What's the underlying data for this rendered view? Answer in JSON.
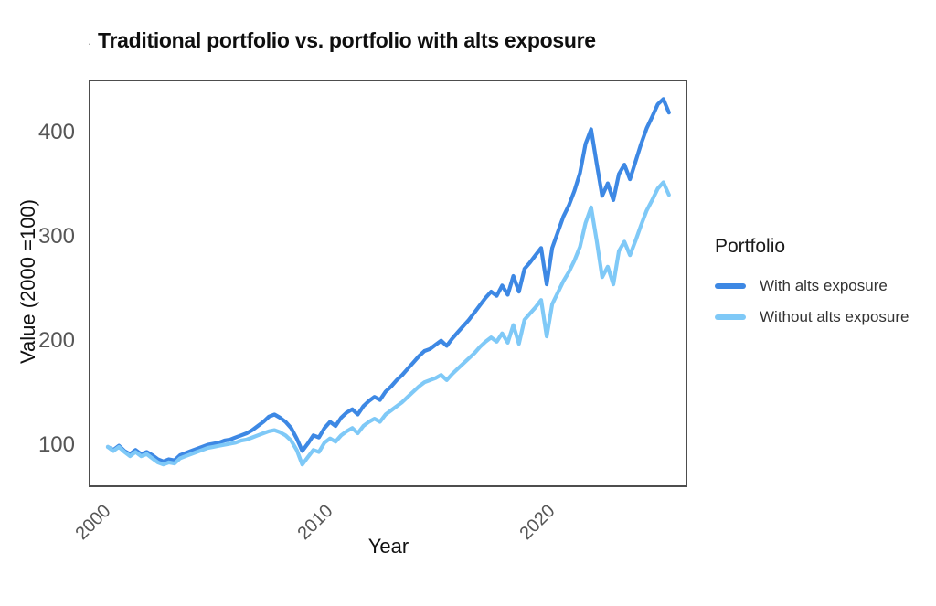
{
  "title": {
    "dot": ".",
    "text": "Traditional portfolio vs. portfolio with alts exposure"
  },
  "chart_data": {
    "type": "line",
    "title": "Traditional portfolio vs. portfolio with alts exposure",
    "xlabel": "Year",
    "ylabel": "Value (2000 =100)",
    "x_domain": [
      1999.47,
      2026.25
    ],
    "y_domain": [
      63,
      451
    ],
    "xticks": [
      2000,
      2010,
      2020
    ],
    "yticks": [
      100,
      200,
      300,
      400
    ],
    "grid": false,
    "panel_border_color": "#4d4d4d",
    "tick_label_color": "#565656",
    "legend": {
      "position": "right",
      "title": "Portfolio"
    },
    "series": [
      {
        "name": "With alts exposure",
        "color": "#3d88e4",
        "points": [
          [
            2000.25,
            100
          ],
          [
            2000.5,
            97
          ],
          [
            2000.75,
            101
          ],
          [
            2001,
            96
          ],
          [
            2001.25,
            93
          ],
          [
            2001.5,
            97
          ],
          [
            2001.75,
            93
          ],
          [
            2002,
            95
          ],
          [
            2002.25,
            92
          ],
          [
            2002.5,
            88
          ],
          [
            2002.75,
            86
          ],
          [
            2003,
            88
          ],
          [
            2003.25,
            87
          ],
          [
            2003.5,
            92
          ],
          [
            2003.75,
            94
          ],
          [
            2004,
            96
          ],
          [
            2004.25,
            98
          ],
          [
            2004.5,
            100
          ],
          [
            2004.75,
            102
          ],
          [
            2005,
            103
          ],
          [
            2005.25,
            104
          ],
          [
            2005.5,
            106
          ],
          [
            2005.75,
            107
          ],
          [
            2006,
            109
          ],
          [
            2006.25,
            111
          ],
          [
            2006.5,
            113
          ],
          [
            2006.75,
            116
          ],
          [
            2007,
            120
          ],
          [
            2007.25,
            124
          ],
          [
            2007.5,
            129
          ],
          [
            2007.75,
            131
          ],
          [
            2008,
            128
          ],
          [
            2008.25,
            124
          ],
          [
            2008.5,
            118
          ],
          [
            2008.75,
            108
          ],
          [
            2009,
            96
          ],
          [
            2009.25,
            103
          ],
          [
            2009.5,
            111
          ],
          [
            2009.75,
            109
          ],
          [
            2010,
            118
          ],
          [
            2010.25,
            124
          ],
          [
            2010.5,
            120
          ],
          [
            2010.75,
            128
          ],
          [
            2011,
            133
          ],
          [
            2011.25,
            136
          ],
          [
            2011.5,
            131
          ],
          [
            2011.75,
            139
          ],
          [
            2012,
            144
          ],
          [
            2012.25,
            148
          ],
          [
            2012.5,
            145
          ],
          [
            2012.75,
            153
          ],
          [
            2013,
            158
          ],
          [
            2013.25,
            164
          ],
          [
            2013.5,
            169
          ],
          [
            2013.75,
            175
          ],
          [
            2014,
            181
          ],
          [
            2014.25,
            187
          ],
          [
            2014.5,
            192
          ],
          [
            2014.75,
            194
          ],
          [
            2015,
            198
          ],
          [
            2015.25,
            202
          ],
          [
            2015.5,
            197
          ],
          [
            2015.75,
            204
          ],
          [
            2016,
            210
          ],
          [
            2016.25,
            216
          ],
          [
            2016.5,
            222
          ],
          [
            2016.75,
            229
          ],
          [
            2017,
            236
          ],
          [
            2017.25,
            243
          ],
          [
            2017.5,
            249
          ],
          [
            2017.75,
            245
          ],
          [
            2018,
            255
          ],
          [
            2018.25,
            246
          ],
          [
            2018.5,
            264
          ],
          [
            2018.75,
            249
          ],
          [
            2019,
            271
          ],
          [
            2019.25,
            277
          ],
          [
            2019.5,
            284
          ],
          [
            2019.75,
            291
          ],
          [
            2020,
            256
          ],
          [
            2020.25,
            291
          ],
          [
            2020.5,
            306
          ],
          [
            2020.75,
            321
          ],
          [
            2021,
            332
          ],
          [
            2021.25,
            346
          ],
          [
            2021.5,
            363
          ],
          [
            2021.75,
            391
          ],
          [
            2022,
            405
          ],
          [
            2022.25,
            372
          ],
          [
            2022.5,
            341
          ],
          [
            2022.75,
            353
          ],
          [
            2023,
            337
          ],
          [
            2023.25,
            362
          ],
          [
            2023.5,
            371
          ],
          [
            2023.75,
            357
          ],
          [
            2024,
            374
          ],
          [
            2024.25,
            391
          ],
          [
            2024.5,
            406
          ],
          [
            2024.75,
            417
          ],
          [
            2025,
            429
          ],
          [
            2025.25,
            434
          ],
          [
            2025.5,
            421
          ]
        ]
      },
      {
        "name": "Without alts exposure",
        "color": "#7fc9f7",
        "points": [
          [
            2000.25,
            100
          ],
          [
            2000.5,
            96
          ],
          [
            2000.75,
            100
          ],
          [
            2001,
            95
          ],
          [
            2001.25,
            91
          ],
          [
            2001.5,
            95
          ],
          [
            2001.75,
            91
          ],
          [
            2002,
            93
          ],
          [
            2002.25,
            89
          ],
          [
            2002.5,
            85
          ],
          [
            2002.75,
            83
          ],
          [
            2003,
            85
          ],
          [
            2003.25,
            84
          ],
          [
            2003.5,
            89
          ],
          [
            2003.75,
            91
          ],
          [
            2004,
            93
          ],
          [
            2004.25,
            95
          ],
          [
            2004.5,
            97
          ],
          [
            2004.75,
            99
          ],
          [
            2005,
            100
          ],
          [
            2005.25,
            101
          ],
          [
            2005.5,
            102
          ],
          [
            2005.75,
            103
          ],
          [
            2006,
            104
          ],
          [
            2006.25,
            106
          ],
          [
            2006.5,
            107
          ],
          [
            2006.75,
            109
          ],
          [
            2007,
            111
          ],
          [
            2007.25,
            113
          ],
          [
            2007.5,
            115
          ],
          [
            2007.75,
            116
          ],
          [
            2008,
            114
          ],
          [
            2008.25,
            111
          ],
          [
            2008.5,
            106
          ],
          [
            2008.75,
            97
          ],
          [
            2009,
            83
          ],
          [
            2009.25,
            90
          ],
          [
            2009.5,
            97
          ],
          [
            2009.75,
            95
          ],
          [
            2010,
            104
          ],
          [
            2010.25,
            108
          ],
          [
            2010.5,
            105
          ],
          [
            2010.75,
            111
          ],
          [
            2011,
            115
          ],
          [
            2011.25,
            118
          ],
          [
            2011.5,
            113
          ],
          [
            2011.75,
            120
          ],
          [
            2012,
            124
          ],
          [
            2012.25,
            127
          ],
          [
            2012.5,
            124
          ],
          [
            2012.75,
            131
          ],
          [
            2013,
            135
          ],
          [
            2013.25,
            139
          ],
          [
            2013.5,
            143
          ],
          [
            2013.75,
            148
          ],
          [
            2014,
            153
          ],
          [
            2014.25,
            158
          ],
          [
            2014.5,
            162
          ],
          [
            2014.75,
            164
          ],
          [
            2015,
            166
          ],
          [
            2015.25,
            169
          ],
          [
            2015.5,
            164
          ],
          [
            2015.75,
            170
          ],
          [
            2016,
            175
          ],
          [
            2016.25,
            180
          ],
          [
            2016.5,
            185
          ],
          [
            2016.75,
            190
          ],
          [
            2017,
            196
          ],
          [
            2017.25,
            201
          ],
          [
            2017.5,
            205
          ],
          [
            2017.75,
            201
          ],
          [
            2018,
            209
          ],
          [
            2018.25,
            200
          ],
          [
            2018.5,
            217
          ],
          [
            2018.75,
            199
          ],
          [
            2019,
            222
          ],
          [
            2019.25,
            228
          ],
          [
            2019.5,
            234
          ],
          [
            2019.75,
            241
          ],
          [
            2020,
            206
          ],
          [
            2020.25,
            237
          ],
          [
            2020.5,
            248
          ],
          [
            2020.75,
            259
          ],
          [
            2021,
            268
          ],
          [
            2021.25,
            279
          ],
          [
            2021.5,
            292
          ],
          [
            2021.75,
            315
          ],
          [
            2022,
            330
          ],
          [
            2022.25,
            298
          ],
          [
            2022.5,
            263
          ],
          [
            2022.75,
            273
          ],
          [
            2023,
            256
          ],
          [
            2023.25,
            288
          ],
          [
            2023.5,
            297
          ],
          [
            2023.75,
            284
          ],
          [
            2024,
            298
          ],
          [
            2024.25,
            313
          ],
          [
            2024.5,
            327
          ],
          [
            2024.75,
            337
          ],
          [
            2025,
            348
          ],
          [
            2025.25,
            354
          ],
          [
            2025.5,
            342
          ]
        ]
      }
    ]
  }
}
